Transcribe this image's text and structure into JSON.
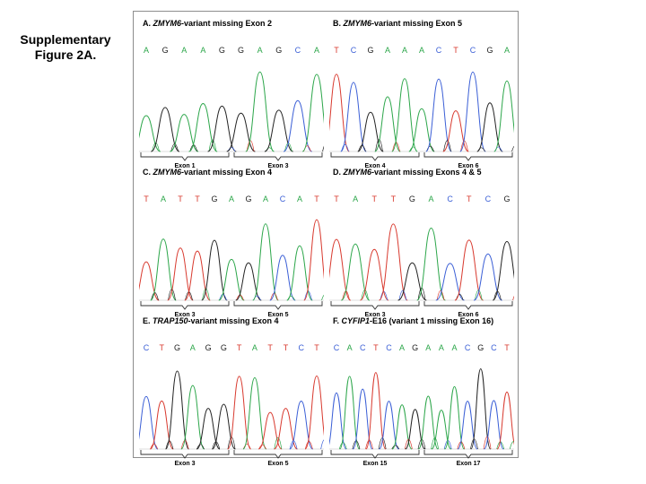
{
  "figure": {
    "label_line1": "Supplementary",
    "label_line2": "Figure 2A."
  },
  "panels": [
    {
      "id": "A",
      "prefix": "A. ",
      "gene": "ZMYM6",
      "suffix": "-variant missing Exon 2",
      "bases": [
        "A",
        "G",
        "A",
        "A",
        "G",
        "G",
        "A",
        "G",
        "C",
        "A"
      ],
      "exons": [
        "Exon 1",
        "Exon 3"
      ]
    },
    {
      "id": "B",
      "prefix": "B. ",
      "gene": "ZMYM6",
      "suffix": "-variant missing Exon 5",
      "bases": [
        "T",
        "C",
        "G",
        "A",
        "A",
        "A",
        "C",
        "T",
        "C",
        "G",
        "A"
      ],
      "exons": [
        "Exon 4",
        "Exon 6"
      ]
    },
    {
      "id": "C",
      "prefix": "C. ",
      "gene": "ZMYM6",
      "suffix": "-variant missing Exon 4",
      "bases": [
        "T",
        "A",
        "T",
        "T",
        "G",
        "A",
        "G",
        "A",
        "C",
        "A",
        "T"
      ],
      "exons": [
        "Exon 3",
        "Exon 5"
      ]
    },
    {
      "id": "D",
      "prefix": "D. ",
      "gene": "ZMYM6",
      "suffix": "-variant missing Exons 4 & 5",
      "bases": [
        "T",
        "A",
        "T",
        "T",
        "G",
        "A",
        "C",
        "T",
        "C",
        "G"
      ],
      "exons": [
        "Exon 3",
        "Exon 6"
      ]
    },
    {
      "id": "E",
      "prefix": "E. ",
      "gene": "TRAP150",
      "suffix": "-variant missing Exon 4",
      "bases": [
        "C",
        "T",
        "G",
        "A",
        "G",
        "G",
        "T",
        "A",
        "T",
        "T",
        "C",
        "T"
      ],
      "exons": [
        "Exon 3",
        "Exon 5"
      ]
    },
    {
      "id": "F",
      "prefix": "F. ",
      "gene": "CYFIP1",
      "suffix": "-E16 (variant 1 missing Exon 16)",
      "bases": [
        "C",
        "A",
        "C",
        "T",
        "C",
        "A",
        "G",
        "A",
        "A",
        "A",
        "C",
        "G",
        "C",
        "T"
      ],
      "exons": [
        "Exon 15",
        "Exon 17"
      ]
    }
  ],
  "colors": {
    "A": "#2ca64a",
    "G": "#222222",
    "C": "#3b5fd6",
    "T": "#d8392e"
  }
}
